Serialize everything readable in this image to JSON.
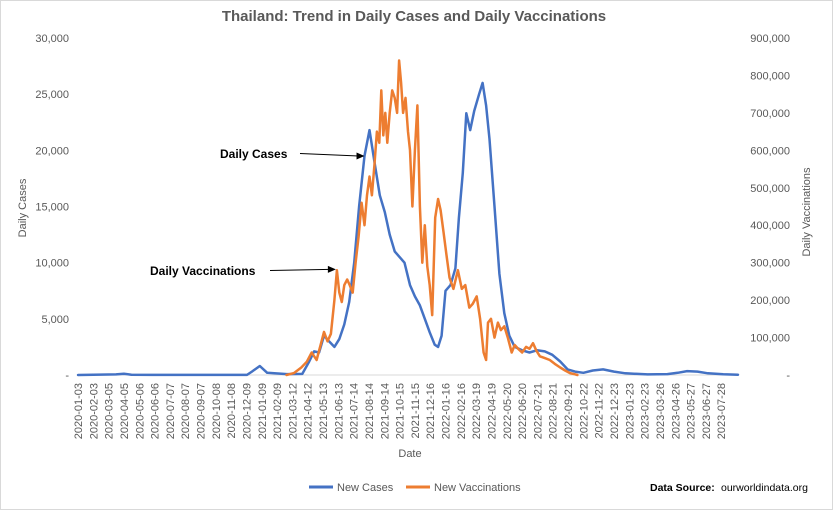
{
  "chart_data": {
    "type": "line",
    "title": "Thailand: Trend in Daily Cases and Daily Vaccinations",
    "xlabel": "Date",
    "ylabel_left": "Daily  Cases",
    "ylabel_right": "Daily Vaccinations",
    "ylim_left": [
      0,
      30000
    ],
    "ylim_right": [
      0,
      900000
    ],
    "yticks_left": [
      "-",
      "5,000",
      "10,000",
      "15,000",
      "20,000",
      "25,000",
      "30,000"
    ],
    "yticks_right": [
      "-",
      "100,000",
      "200,000",
      "300,000",
      "400,000",
      "500,000",
      "600,000",
      "700,000",
      "800,000",
      "900,000"
    ],
    "xlim": [
      "2020-01-03",
      "2023-08-31"
    ],
    "categories": [
      "2020-01-03",
      "2020-02-03",
      "2020-03-05",
      "2020-04-05",
      "2020-05-06",
      "2020-06-06",
      "2020-07-07",
      "2020-08-07",
      "2020-09-07",
      "2020-10-08",
      "2020-11-08",
      "2020-12-09",
      "2021-01-09",
      "2021-02-09",
      "2021-03-12",
      "2021-04-12",
      "2021-05-13",
      "2021-06-13",
      "2021-07-14",
      "2021-08-14",
      "2021-09-14",
      "2021-10-15",
      "2021-11-15",
      "2021-12-16",
      "2022-01-16",
      "2022-02-16",
      "2022-03-19",
      "2022-04-19",
      "2022-05-20",
      "2022-06-20",
      "2022-07-21",
      "2022-08-21",
      "2022-09-21",
      "2022-10-22",
      "2022-11-22",
      "2022-12-23",
      "2023-01-23",
      "2023-02-23",
      "2023-03-26",
      "2023-04-26",
      "2023-05-27",
      "2023-06-27",
      "2023-07-28"
    ],
    "grid": false,
    "legend_position": "bottom",
    "series": [
      {
        "name": "New Cases",
        "color": "#4472C4",
        "axis": "left",
        "points": [
          [
            "2020-01-03",
            0
          ],
          [
            "2020-03-20",
            50
          ],
          [
            "2020-04-05",
            120
          ],
          [
            "2020-04-20",
            30
          ],
          [
            "2020-06-01",
            5
          ],
          [
            "2020-12-10",
            10
          ],
          [
            "2020-12-20",
            300
          ],
          [
            "2021-01-05",
            800
          ],
          [
            "2021-01-20",
            200
          ],
          [
            "2021-03-01",
            80
          ],
          [
            "2021-04-01",
            100
          ],
          [
            "2021-04-15",
            1200
          ],
          [
            "2021-04-25",
            2100
          ],
          [
            "2021-05-05",
            2000
          ],
          [
            "2021-05-15",
            3500
          ],
          [
            "2021-05-25",
            3000
          ],
          [
            "2021-06-05",
            2500
          ],
          [
            "2021-06-15",
            3200
          ],
          [
            "2021-06-25",
            4500
          ],
          [
            "2021-07-05",
            6500
          ],
          [
            "2021-07-15",
            10000
          ],
          [
            "2021-07-25",
            15000
          ],
          [
            "2021-08-05",
            19500
          ],
          [
            "2021-08-15",
            21800
          ],
          [
            "2021-08-25",
            19000
          ],
          [
            "2021-09-05",
            16000
          ],
          [
            "2021-09-15",
            14500
          ],
          [
            "2021-09-25",
            12500
          ],
          [
            "2021-10-05",
            11000
          ],
          [
            "2021-10-15",
            10500
          ],
          [
            "2021-10-25",
            10000
          ],
          [
            "2021-11-05",
            8000
          ],
          [
            "2021-11-15",
            7000
          ],
          [
            "2021-11-25",
            6200
          ],
          [
            "2021-12-05",
            5000
          ],
          [
            "2021-12-15",
            3800
          ],
          [
            "2021-12-25",
            2700
          ],
          [
            "2022-01-01",
            2500
          ],
          [
            "2022-01-08",
            3500
          ],
          [
            "2022-01-16",
            7500
          ],
          [
            "2022-01-26",
            8000
          ],
          [
            "2022-02-05",
            9500
          ],
          [
            "2022-02-12",
            14000
          ],
          [
            "2022-02-20",
            18000
          ],
          [
            "2022-02-27",
            23300
          ],
          [
            "2022-03-07",
            21800
          ],
          [
            "2022-03-15",
            23500
          ],
          [
            "2022-03-25",
            25000
          ],
          [
            "2022-04-01",
            26000
          ],
          [
            "2022-04-08",
            24000
          ],
          [
            "2022-04-15",
            21000
          ],
          [
            "2022-04-25",
            15000
          ],
          [
            "2022-05-05",
            9000
          ],
          [
            "2022-05-15",
            5500
          ],
          [
            "2022-05-25",
            3500
          ],
          [
            "2022-06-05",
            2500
          ],
          [
            "2022-06-20",
            2200
          ],
          [
            "2022-07-05",
            2000
          ],
          [
            "2022-07-20",
            2200
          ],
          [
            "2022-08-05",
            2100
          ],
          [
            "2022-08-20",
            1800
          ],
          [
            "2022-09-05",
            1200
          ],
          [
            "2022-09-20",
            500
          ],
          [
            "2022-10-05",
            300
          ],
          [
            "2022-10-22",
            200
          ],
          [
            "2022-11-10",
            400
          ],
          [
            "2022-12-01",
            500
          ],
          [
            "2022-12-23",
            300
          ],
          [
            "2023-01-15",
            150
          ],
          [
            "2023-03-01",
            50
          ],
          [
            "2023-04-10",
            80
          ],
          [
            "2023-05-01",
            200
          ],
          [
            "2023-05-20",
            350
          ],
          [
            "2023-06-10",
            300
          ],
          [
            "2023-07-01",
            150
          ],
          [
            "2023-08-01",
            60
          ],
          [
            "2023-08-31",
            30
          ]
        ]
      },
      {
        "name": "New Vaccinations",
        "color": "#ED7D31",
        "axis": "right",
        "points": [
          [
            "2021-02-28",
            0
          ],
          [
            "2021-03-15",
            5000
          ],
          [
            "2021-03-30",
            20000
          ],
          [
            "2021-04-10",
            35000
          ],
          [
            "2021-04-20",
            60000
          ],
          [
            "2021-04-30",
            40000
          ],
          [
            "2021-05-08",
            80000
          ],
          [
            "2021-05-15",
            115000
          ],
          [
            "2021-05-22",
            90000
          ],
          [
            "2021-05-29",
            110000
          ],
          [
            "2021-06-05",
            200000
          ],
          [
            "2021-06-10",
            280000
          ],
          [
            "2021-06-15",
            220000
          ],
          [
            "2021-06-20",
            195000
          ],
          [
            "2021-06-25",
            240000
          ],
          [
            "2021-07-01",
            255000
          ],
          [
            "2021-07-06",
            240000
          ],
          [
            "2021-07-12",
            220000
          ],
          [
            "2021-07-18",
            300000
          ],
          [
            "2021-07-24",
            370000
          ],
          [
            "2021-07-30",
            460000
          ],
          [
            "2021-08-05",
            400000
          ],
          [
            "2021-08-10",
            480000
          ],
          [
            "2021-08-15",
            530000
          ],
          [
            "2021-08-20",
            480000
          ],
          [
            "2021-08-25",
            560000
          ],
          [
            "2021-08-30",
            650000
          ],
          [
            "2021-09-04",
            620000
          ],
          [
            "2021-09-08",
            760000
          ],
          [
            "2021-09-12",
            640000
          ],
          [
            "2021-09-16",
            700000
          ],
          [
            "2021-09-20",
            620000
          ],
          [
            "2021-09-25",
            700000
          ],
          [
            "2021-09-30",
            760000
          ],
          [
            "2021-10-05",
            740000
          ],
          [
            "2021-10-10",
            700000
          ],
          [
            "2021-10-14",
            840000
          ],
          [
            "2021-10-18",
            780000
          ],
          [
            "2021-10-22",
            700000
          ],
          [
            "2021-10-27",
            740000
          ],
          [
            "2021-11-01",
            650000
          ],
          [
            "2021-11-05",
            600000
          ],
          [
            "2021-11-10",
            450000
          ],
          [
            "2021-11-15",
            600000
          ],
          [
            "2021-11-20",
            720000
          ],
          [
            "2021-11-25",
            450000
          ],
          [
            "2021-11-30",
            300000
          ],
          [
            "2021-12-05",
            400000
          ],
          [
            "2021-12-10",
            290000
          ],
          [
            "2021-12-15",
            240000
          ],
          [
            "2021-12-20",
            160000
          ],
          [
            "2021-12-26",
            420000
          ],
          [
            "2022-01-01",
            470000
          ],
          [
            "2022-01-06",
            440000
          ],
          [
            "2022-01-12",
            380000
          ],
          [
            "2022-01-18",
            320000
          ],
          [
            "2022-01-24",
            260000
          ],
          [
            "2022-02-01",
            230000
          ],
          [
            "2022-02-10",
            280000
          ],
          [
            "2022-02-18",
            230000
          ],
          [
            "2022-02-25",
            240000
          ],
          [
            "2022-03-05",
            180000
          ],
          [
            "2022-03-12",
            190000
          ],
          [
            "2022-03-20",
            210000
          ],
          [
            "2022-03-27",
            150000
          ],
          [
            "2022-04-03",
            60000
          ],
          [
            "2022-04-08",
            40000
          ],
          [
            "2022-04-12",
            140000
          ],
          [
            "2022-04-18",
            150000
          ],
          [
            "2022-04-25",
            100000
          ],
          [
            "2022-05-02",
            140000
          ],
          [
            "2022-05-08",
            120000
          ],
          [
            "2022-05-15",
            130000
          ],
          [
            "2022-05-22",
            100000
          ],
          [
            "2022-05-30",
            60000
          ],
          [
            "2022-06-05",
            80000
          ],
          [
            "2022-06-12",
            70000
          ],
          [
            "2022-06-20",
            60000
          ],
          [
            "2022-06-28",
            75000
          ],
          [
            "2022-07-05",
            70000
          ],
          [
            "2022-07-12",
            85000
          ],
          [
            "2022-07-19",
            65000
          ],
          [
            "2022-07-26",
            50000
          ],
          [
            "2022-08-05",
            45000
          ],
          [
            "2022-08-15",
            40000
          ],
          [
            "2022-08-25",
            30000
          ],
          [
            "2022-09-05",
            20000
          ],
          [
            "2022-09-15",
            12000
          ],
          [
            "2022-09-25",
            5000
          ],
          [
            "2022-10-05",
            2000
          ],
          [
            "2022-10-10",
            0
          ]
        ]
      }
    ],
    "annotations": [
      {
        "text": "Daily Cases",
        "x": "2021-08-05",
        "y": 19500,
        "axis": "left"
      },
      {
        "text": "Daily Vaccinations",
        "x": "2021-06-08",
        "y": 9400,
        "axis": "left"
      }
    ]
  },
  "legend": [
    {
      "label": "New Cases",
      "color": "#4472C4"
    },
    {
      "label": "New Vaccinations",
      "color": "#ED7D31"
    }
  ],
  "source": {
    "label": "Data Source:",
    "value": "ourworldindata.org"
  }
}
